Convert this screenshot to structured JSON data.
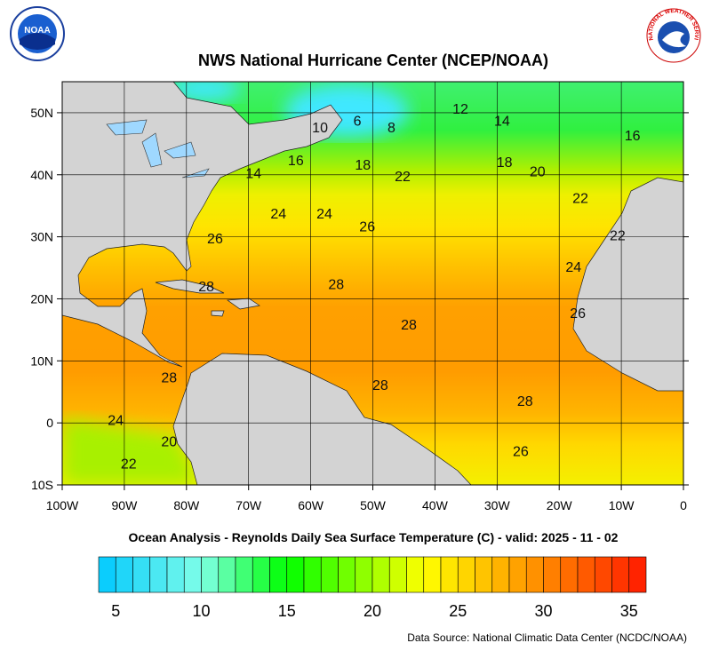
{
  "title": "NWS National Hurricane Center (NCEP/NOAA)",
  "subtitle": "Ocean Analysis - Reynolds Daily Sea Surface Temperature (C) - valid: 2025 - 11 - 02",
  "source": "Data Source: National Climatic Data Center (NCDC/NOAA)",
  "logos": {
    "noaa": "NOAA",
    "nws": "NATIONAL WEATHER SERVICE"
  },
  "map": {
    "xlim": [
      -100,
      0
    ],
    "ylim": [
      -10,
      55
    ],
    "grid": true,
    "land_color": "#d3d3d3",
    "xticks": [
      {
        "value": -100,
        "label": "100W"
      },
      {
        "value": -90,
        "label": "90W"
      },
      {
        "value": -80,
        "label": "80W"
      },
      {
        "value": -70,
        "label": "70W"
      },
      {
        "value": -60,
        "label": "60W"
      },
      {
        "value": -50,
        "label": "50W"
      },
      {
        "value": -40,
        "label": "40W"
      },
      {
        "value": -30,
        "label": "30W"
      },
      {
        "value": -20,
        "label": "20W"
      },
      {
        "value": -10,
        "label": "10W"
      },
      0
    ],
    "yticks": [
      {
        "value": -10,
        "label": "10S"
      },
      0,
      {
        "value": 10,
        "label": "10N"
      },
      {
        "value": 20,
        "label": "20N"
      },
      {
        "value": 30,
        "label": "30N"
      },
      {
        "value": 40,
        "label": "40N"
      },
      {
        "value": 50,
        "label": "50N"
      }
    ],
    "contour_labels": [
      {
        "value": 12,
        "lon": -35.9,
        "lat": 50.7
      },
      {
        "value": 14,
        "lon": -29.2,
        "lat": 48.8
      },
      {
        "value": 16,
        "lon": -8.2,
        "lat": 46.4
      },
      {
        "value": 10,
        "lon": -58.5,
        "lat": 47.7
      },
      {
        "value": 6,
        "lon": -52.5,
        "lat": 48.8
      },
      {
        "value": 8,
        "lon": -47,
        "lat": 47.7
      },
      {
        "value": 16,
        "lon": -62.4,
        "lat": 42.4
      },
      {
        "value": 14,
        "lon": -69.2,
        "lat": 40.3
      },
      {
        "value": 18,
        "lon": -51.6,
        "lat": 41.7
      },
      {
        "value": 22,
        "lon": -45.2,
        "lat": 39.8
      },
      {
        "value": 18,
        "lon": -28.8,
        "lat": 42.1
      },
      {
        "value": 20,
        "lon": -23.5,
        "lat": 40.6
      },
      {
        "value": 22,
        "lon": -16.6,
        "lat": 36.3
      },
      {
        "value": 24,
        "lon": -65.2,
        "lat": 33.8
      },
      {
        "value": 24,
        "lon": -57.8,
        "lat": 33.8
      },
      {
        "value": 26,
        "lon": -50.9,
        "lat": 31.7
      },
      {
        "value": 26,
        "lon": -75.4,
        "lat": 29.8
      },
      {
        "value": 22,
        "lon": -10.6,
        "lat": 30.3
      },
      {
        "value": 24,
        "lon": -17.7,
        "lat": 25.2
      },
      {
        "value": 28,
        "lon": -55.9,
        "lat": 22.4
      },
      {
        "value": 28,
        "lon": -76.8,
        "lat": 22.1
      },
      {
        "value": 28,
        "lon": -44.2,
        "lat": 15.9
      },
      {
        "value": 26,
        "lon": -17.0,
        "lat": 17.8
      },
      {
        "value": 28,
        "lon": -82.8,
        "lat": 7.4
      },
      {
        "value": 28,
        "lon": -48.8,
        "lat": 6.2
      },
      {
        "value": 28,
        "lon": -25.5,
        "lat": 3.6
      },
      {
        "value": 24,
        "lon": -91.4,
        "lat": 0.5
      },
      {
        "value": 20,
        "lon": -82.8,
        "lat": -2.9
      },
      {
        "value": 22,
        "lon": -89.3,
        "lat": -6.5
      },
      {
        "value": 26,
        "lon": -26.2,
        "lat": -4.5
      }
    ]
  },
  "colorbar": {
    "lim": [
      4,
      36
    ],
    "ticks": [
      5,
      10,
      15,
      20,
      25,
      30,
      35
    ],
    "colormap": [
      {
        "value": 4,
        "color": "#00c8ff"
      },
      {
        "value": 10,
        "color": "#80ffe8"
      },
      {
        "value": 15,
        "color": "#00ff00"
      },
      {
        "value": 23,
        "color": "#ffff00"
      },
      {
        "value": 29,
        "color": "#ff9a00"
      },
      {
        "value": 36,
        "color": "#ff1a00"
      }
    ]
  }
}
